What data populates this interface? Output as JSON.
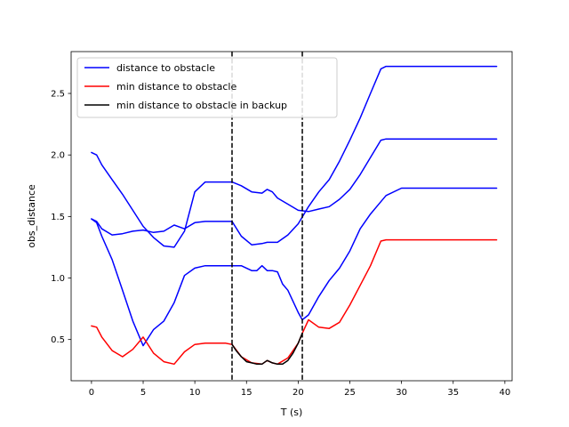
{
  "chart_data": {
    "type": "line",
    "xlabel": "T (s)",
    "ylabel": "obs_distance",
    "xlim": [
      -1.97,
      40.7
    ],
    "ylim": [
      0.165,
      2.84
    ],
    "xticks": [
      0,
      5,
      10,
      15,
      20,
      25,
      30,
      35,
      40
    ],
    "yticks": [
      0.5,
      1.0,
      1.5,
      2.0,
      2.5
    ],
    "ytick_labels": [
      "0.5",
      "1.0",
      "1.5",
      "2.0",
      "2.5"
    ],
    "grid": false,
    "legend_placement": "top-left",
    "vlines": [
      13.6,
      20.4
    ],
    "legend": [
      {
        "label": "distance to obstacle",
        "color": "#0000ff"
      },
      {
        "label": "min distance to obstacle",
        "color": "#ff0000"
      },
      {
        "label": "min distance to obstacle in backup",
        "color": "#000000"
      }
    ],
    "series": [
      {
        "name": "distance to obstacle",
        "color": "#0000ff",
        "x": [
          0.0,
          0.5,
          1.0,
          2.0,
          3.0,
          4.0,
          5.0,
          6.0,
          7.0,
          8.0,
          9.0,
          10.0,
          11.0,
          12.0,
          13.0,
          13.6,
          14.5,
          15.5,
          16.5,
          17.0,
          17.5,
          18.0,
          19.0,
          20.0,
          21.0,
          22.0,
          23.0,
          24.0,
          25.0,
          26.0,
          27.0,
          28.0,
          28.5,
          30.0,
          35.0,
          39.2
        ],
        "y": [
          2.02,
          2.0,
          1.92,
          1.8,
          1.68,
          1.55,
          1.42,
          1.33,
          1.26,
          1.25,
          1.38,
          1.7,
          1.78,
          1.78,
          1.78,
          1.78,
          1.75,
          1.7,
          1.69,
          1.72,
          1.7,
          1.65,
          1.6,
          1.55,
          1.54,
          1.56,
          1.58,
          1.64,
          1.72,
          1.84,
          1.98,
          2.12,
          2.13,
          2.13,
          2.13,
          2.13
        ]
      },
      {
        "name": "distance to obstacle",
        "color": "#0000ff",
        "x": [
          0.0,
          0.5,
          1.0,
          2.0,
          3.0,
          4.0,
          5.0,
          6.0,
          7.0,
          8.0,
          9.0,
          10.0,
          11.0,
          12.0,
          13.0,
          13.6,
          14.5,
          15.5,
          16.5,
          17.0,
          17.5,
          18.0,
          19.0,
          20.0,
          21.0,
          22.0,
          23.0,
          24.0,
          25.0,
          26.0,
          27.0,
          28.0,
          28.5,
          30.0,
          35.0,
          39.2
        ],
        "y": [
          1.48,
          1.46,
          1.4,
          1.35,
          1.36,
          1.38,
          1.39,
          1.37,
          1.38,
          1.43,
          1.4,
          1.45,
          1.46,
          1.46,
          1.46,
          1.46,
          1.34,
          1.27,
          1.28,
          1.29,
          1.29,
          1.29,
          1.35,
          1.44,
          1.58,
          1.7,
          1.8,
          1.95,
          2.12,
          2.3,
          2.5,
          2.7,
          2.72,
          2.72,
          2.72,
          2.72
        ]
      },
      {
        "name": "distance to obstacle",
        "color": "#0000ff",
        "x": [
          0.0,
          0.5,
          1.0,
          2.0,
          3.0,
          4.0,
          5.0,
          6.0,
          7.0,
          8.0,
          9.0,
          10.0,
          11.0,
          12.0,
          13.0,
          13.6,
          14.5,
          15.5,
          16.0,
          16.5,
          17.0,
          17.5,
          18.0,
          18.5,
          19.0,
          20.0,
          20.4,
          21.0,
          22.0,
          23.0,
          24.0,
          25.0,
          26.0,
          27.0,
          28.0,
          28.5,
          30.0,
          35.0,
          39.2
        ],
        "y": [
          1.48,
          1.45,
          1.34,
          1.15,
          0.9,
          0.65,
          0.45,
          0.58,
          0.65,
          0.8,
          1.02,
          1.08,
          1.1,
          1.1,
          1.1,
          1.1,
          1.1,
          1.06,
          1.06,
          1.1,
          1.06,
          1.06,
          1.05,
          0.95,
          0.9,
          0.72,
          0.66,
          0.7,
          0.85,
          0.98,
          1.08,
          1.22,
          1.4,
          1.52,
          1.62,
          1.67,
          1.73,
          1.73,
          1.73
        ]
      },
      {
        "name": "min distance to obstacle",
        "color": "#ff0000",
        "x": [
          0.0,
          0.5,
          1.0,
          2.0,
          3.0,
          4.0,
          5.0,
          6.0,
          7.0,
          8.0,
          9.0,
          10.0,
          11.0,
          12.0,
          13.0,
          13.6,
          14.5,
          15.5,
          16.5,
          17.0,
          17.5,
          18.0,
          19.0,
          20.0,
          20.4,
          21.0,
          22.0,
          23.0,
          24.0,
          25.0,
          26.0,
          27.0,
          28.0,
          28.5,
          30.0,
          35.0,
          39.2
        ],
        "y": [
          0.61,
          0.6,
          0.52,
          0.41,
          0.36,
          0.42,
          0.52,
          0.39,
          0.32,
          0.3,
          0.4,
          0.46,
          0.47,
          0.47,
          0.47,
          0.46,
          0.36,
          0.31,
          0.3,
          0.33,
          0.31,
          0.3,
          0.35,
          0.47,
          0.55,
          0.66,
          0.6,
          0.59,
          0.64,
          0.78,
          0.94,
          1.1,
          1.3,
          1.31,
          1.31,
          1.31,
          1.31
        ]
      },
      {
        "name": "min distance to obstacle in backup",
        "color": "#000000",
        "x": [
          13.6,
          14.0,
          14.5,
          15.0,
          15.5,
          16.0,
          16.5,
          17.0,
          17.5,
          18.0,
          18.5,
          19.0,
          19.5,
          20.0,
          20.4
        ],
        "y": [
          0.46,
          0.41,
          0.36,
          0.32,
          0.31,
          0.3,
          0.3,
          0.33,
          0.31,
          0.3,
          0.3,
          0.33,
          0.39,
          0.47,
          0.55
        ]
      }
    ]
  }
}
